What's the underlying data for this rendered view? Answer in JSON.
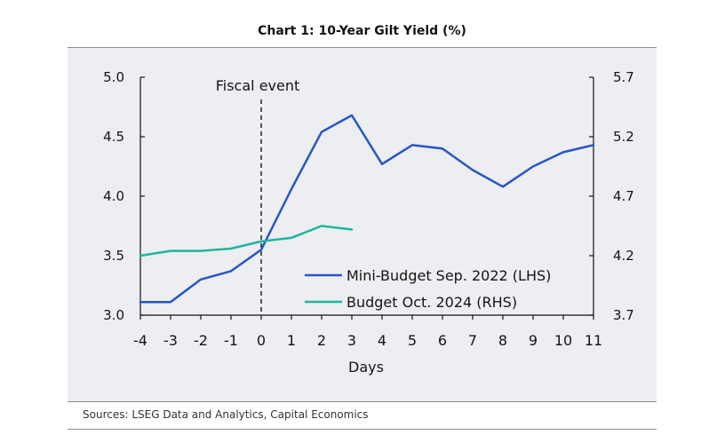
{
  "chart_data": {
    "type": "line",
    "title": "Chart 1: 10-Year Gilt Yield (%)",
    "xlabel": "Days",
    "ylabel_left": "",
    "ylabel_right": "",
    "x": [
      -4,
      -3,
      -2,
      -1,
      0,
      1,
      2,
      3,
      4,
      5,
      6,
      7,
      8,
      9,
      10,
      11
    ],
    "xticks": [
      "-4",
      "-3",
      "-2",
      "-1",
      "0",
      "1",
      "2",
      "3",
      "4",
      "5",
      "6",
      "7",
      "8",
      "9",
      "10",
      "11"
    ],
    "xlim": [
      -4,
      11
    ],
    "ylim_left": [
      3.0,
      5.0
    ],
    "yticks_left": [
      "3.0",
      "3.5",
      "4.0",
      "4.5",
      "5.0"
    ],
    "ylim_right": [
      3.7,
      5.7
    ],
    "yticks_right": [
      "3.7",
      "4.2",
      "4.7",
      "5.2",
      "5.7"
    ],
    "grid": false,
    "legend_position": "center-right",
    "annotations": [
      {
        "text": "Fiscal event",
        "x": 0,
        "style": "dashed-vertical-line"
      }
    ],
    "series": [
      {
        "name": "Mini-Budget Sep. 2022 (LHS)",
        "axis": "left",
        "color": "#2a55c4",
        "x": [
          -4,
          -3,
          -2,
          -1,
          0,
          1,
          2,
          3,
          4,
          5,
          6,
          7,
          8,
          9,
          10,
          11
        ],
        "values": [
          3.11,
          3.11,
          3.3,
          3.37,
          3.55,
          4.06,
          4.54,
          4.68,
          4.27,
          4.43,
          4.4,
          4.22,
          4.08,
          4.25,
          4.37,
          4.43
        ]
      },
      {
        "name": "Budget Oct. 2024 (RHS)",
        "axis": "right",
        "color": "#1fb5a0",
        "x": [
          -4,
          -3,
          -2,
          -1,
          0,
          1,
          2,
          3
        ],
        "values": [
          4.2,
          4.24,
          4.24,
          4.26,
          4.32,
          4.35,
          4.45,
          4.42
        ]
      }
    ]
  },
  "footer": {
    "source": "Sources: LSEG Data and Analytics, Capital Economics"
  }
}
